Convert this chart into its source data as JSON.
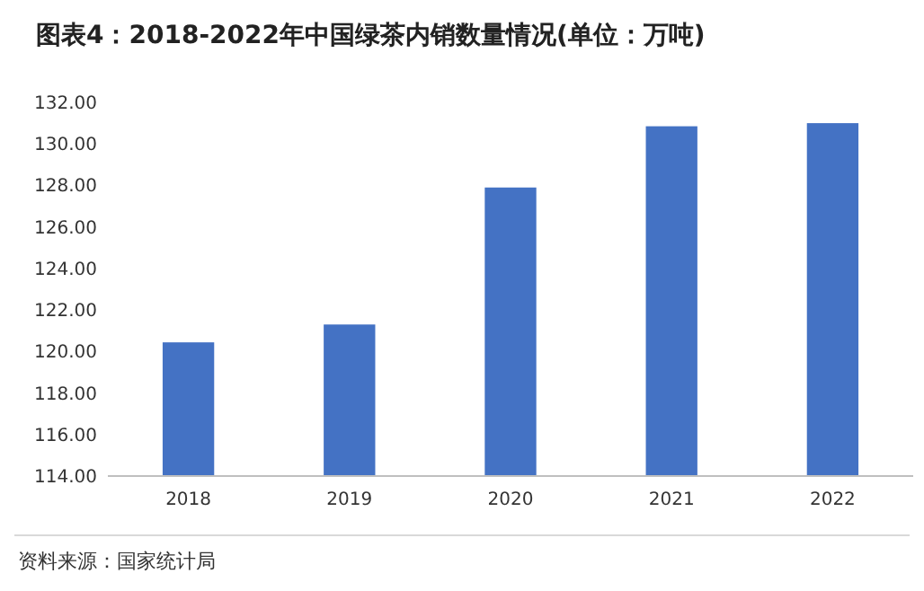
{
  "chart_data": {
    "type": "bar",
    "title": "图表4：2018-2022年中国绿茶内销数量情况(单位：万吨)",
    "categories": [
      "2018",
      "2019",
      "2020",
      "2021",
      "2022"
    ],
    "values": [
      120.44,
      121.3,
      127.9,
      130.85,
      131.0
    ],
    "color": "#4472c4",
    "ylim": [
      114,
      132
    ],
    "yticks": [
      {
        "value": 114,
        "label": "114.00"
      },
      {
        "value": 116,
        "label": "116.00"
      },
      {
        "value": 118,
        "label": "118.00"
      },
      {
        "value": 120,
        "label": "120.00"
      },
      {
        "value": 122,
        "label": "122.00"
      },
      {
        "value": 124,
        "label": "124.00"
      },
      {
        "value": 126,
        "label": "126.00"
      },
      {
        "value": 128,
        "label": "128.00"
      },
      {
        "value": 130,
        "label": "130.00"
      },
      {
        "value": 132,
        "label": "132.00"
      }
    ],
    "annotations": [
      "资料来源：国家统计局"
    ]
  }
}
